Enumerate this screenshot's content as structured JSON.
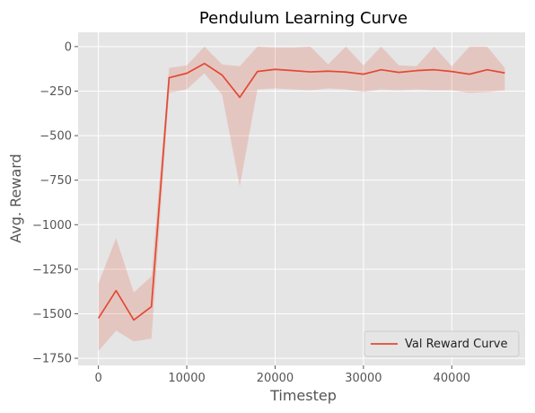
{
  "chart_data": {
    "type": "line",
    "title": "Pendulum Learning Curve",
    "xlabel": "Timestep",
    "ylabel": "Avg. Reward",
    "xlim": [
      -2300,
      48300
    ],
    "ylim": [
      -1790,
      80
    ],
    "x_ticks": [
      0,
      10000,
      20000,
      30000,
      40000
    ],
    "x_tick_labels": [
      "0",
      "10000",
      "20000",
      "30000",
      "40000"
    ],
    "y_ticks": [
      0,
      -250,
      -500,
      -750,
      -1000,
      -1250,
      -1500,
      -1750
    ],
    "y_tick_labels": [
      "0",
      "−250",
      "−500",
      "−750",
      "−1000",
      "−1250",
      "−1500",
      "−1750"
    ],
    "grid": true,
    "legend_position": "lower-right",
    "colors": {
      "line": "#E24A33",
      "band": "#E24A33",
      "axes_bg": "#E5E5E5",
      "grid": "#FFFFFF"
    },
    "series": [
      {
        "name": "Val Reward Curve",
        "x": [
          0,
          2000,
          4000,
          6000,
          8000,
          10000,
          12000,
          14000,
          16000,
          18000,
          20000,
          22000,
          24000,
          26000,
          28000,
          30000,
          32000,
          34000,
          36000,
          38000,
          40000,
          42000,
          44000,
          46000
        ],
        "y": [
          -1525,
          -1370,
          -1535,
          -1460,
          -175,
          -150,
          -95,
          -160,
          -285,
          -140,
          -128,
          -135,
          -142,
          -138,
          -143,
          -155,
          -130,
          -145,
          -135,
          -130,
          -140,
          -155,
          -130,
          -148
        ],
        "upper": [
          -1330,
          -1075,
          -1380,
          -1290,
          -120,
          -105,
          0,
          -100,
          -110,
          0,
          -5,
          -5,
          0,
          -100,
          0,
          -105,
          0,
          -105,
          -110,
          0,
          -110,
          0,
          0,
          -120
        ],
        "lower": [
          -1710,
          -1595,
          -1655,
          -1640,
          -260,
          -240,
          -150,
          -270,
          -785,
          -240,
          -235,
          -240,
          -245,
          -235,
          -240,
          -255,
          -240,
          -245,
          -240,
          -245,
          -245,
          -260,
          -255,
          -245
        ]
      }
    ]
  }
}
